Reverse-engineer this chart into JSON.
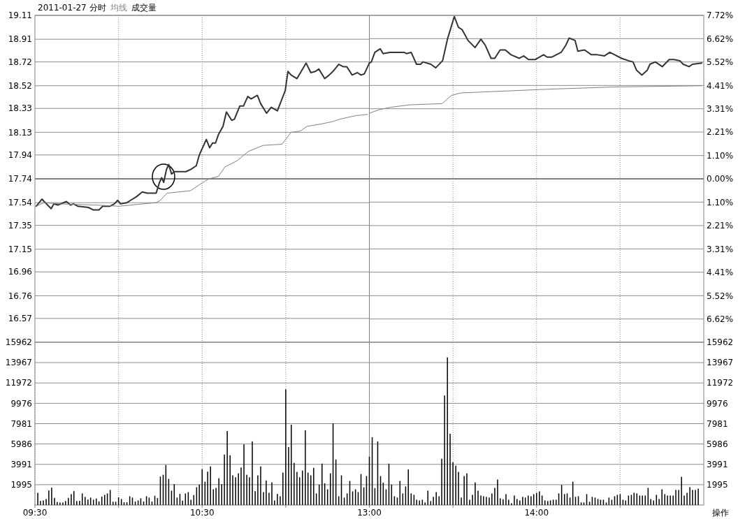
{
  "chart_data": [
    {
      "type": "line",
      "title": "2011-01-27 分时",
      "legend": "top left",
      "grid": true,
      "tick_labels": "y",
      "xlim": [
        9.5,
        11.5
      ],
      "xticks": [
        {
          "value": 10,
          "label": null
        },
        {
          "value": 10.5,
          "label": null
        },
        {
          "value": 11,
          "label": null
        }
      ],
      "ylim": [
        16.37,
        19.11
      ],
      "yticks": [
        16.57,
        16.76,
        16.96,
        17.15,
        17.35,
        17.54,
        17.74,
        17.94,
        18.13,
        18.33,
        18.52,
        18.72,
        18.91,
        19.11
      ],
      "ref_lines": [
        {
          "axis": "y",
          "value": 17.74,
          "color": "#808080"
        }
      ],
      "series": [
        {
          "color": "#333333",
          "x": [
            9.507,
            9.542,
            9.555,
            9.597,
            9.613,
            9.637,
            9.688,
            9.713,
            9.73,
            9.758,
            9.82,
            9.848,
            9.883,
            9.905,
            9.947,
            9.975,
            9.995,
            10.012,
            10.05,
            10.072,
            10.107,
            10.142,
            10.17,
            10.225,
            10.245,
            10.258,
            10.27,
            10.287,
            10.3,
            10.317,
            10.333,
            10.403,
            10.433,
            10.465,
            10.483,
            10.525,
            10.545,
            10.562,
            10.58,
            10.597,
            10.625,
            10.645,
            10.677,
            10.693,
            10.725,
            10.747,
            10.773,
            10.793,
            10.83,
            10.85,
            10.885,
            10.913,
            10.95,
            10.997,
            11.013,
            11.032,
            11.067,
            11.122,
            11.15,
            11.177,
            11.198,
            11.233,
            11.26,
            11.282,
            11.317,
            11.343,
            11.365,
            11.397,
            11.428,
            11.45,
            11.47,
            11.5
          ],
          "values": [
            17.51,
            17.57,
            17.55,
            17.49,
            17.53,
            17.52,
            17.55,
            17.52,
            17.53,
            17.51,
            17.5,
            17.48,
            17.48,
            17.51,
            17.51,
            17.53,
            17.56,
            17.53,
            17.54,
            17.56,
            17.59,
            17.63,
            17.62,
            17.62,
            17.71,
            17.75,
            17.71,
            17.82,
            17.86,
            17.78,
            17.8,
            17.8,
            17.82,
            17.85,
            17.94,
            18.07,
            18,
            18.04,
            18.04,
            18.11,
            18.18,
            18.3,
            18.23,
            18.24,
            18.35,
            18.35,
            18.43,
            18.41,
            18.44,
            18.37,
            18.29,
            18.34,
            18.31,
            18.48,
            18.64,
            18.61,
            18.58,
            18.71,
            18.63,
            18.64,
            18.66,
            18.58,
            18.61,
            18.64,
            18.7,
            18.68,
            18.68,
            18.61,
            18.63,
            18.61,
            18.62,
            18.71
          ]
        },
        {
          "name": "均线",
          "color": "#808080",
          "x": [
            9.507,
            9.555,
            9.653,
            9.863,
            10.003,
            10.072,
            10.225,
            10.25,
            10.29,
            10.36,
            10.43,
            10.483,
            10.54,
            10.597,
            10.637,
            10.707,
            10.777,
            10.865,
            10.977,
            11.032,
            11.087,
            11.128,
            11.212,
            11.282,
            11.323,
            11.42,
            11.49
          ],
          "values": [
            17.51,
            17.54,
            17.53,
            17.52,
            17.51,
            17.52,
            17.54,
            17.56,
            17.62,
            17.63,
            17.64,
            17.69,
            17.74,
            17.76,
            17.84,
            17.89,
            17.97,
            18.02,
            18.03,
            18.13,
            18.14,
            18.18,
            18.2,
            18.22,
            18.24,
            18.27,
            18.28
          ]
        }
      ]
    },
    {
      "type": "line",
      "grid": true,
      "tick_labels": "y",
      "xlim": [
        13,
        15
      ],
      "xticks": [
        {
          "value": 13.5,
          "label": null
        },
        {
          "value": 14,
          "label": null
        },
        {
          "value": 14.5,
          "label": null
        }
      ],
      "ylim": [
        16.37,
        19.11
      ],
      "y2lim": [
        -7.72,
        7.72
      ],
      "y2ticks": [
        {
          "value": -6.62,
          "label": "6.62%"
        },
        {
          "value": -5.52,
          "label": "5.52%"
        },
        {
          "value": -4.41,
          "label": "4.41%"
        },
        {
          "value": -3.31,
          "label": "3.31%"
        },
        {
          "value": -2.21,
          "label": "2.21%"
        },
        {
          "value": -1.1,
          "label": "1.10%"
        },
        {
          "value": 0,
          "label": "0.00%"
        },
        {
          "value": 1.1,
          "label": "1.10%"
        },
        {
          "value": 2.21,
          "label": "2.21%"
        },
        {
          "value": 3.31,
          "label": "3.31%"
        },
        {
          "value": 4.41,
          "label": "4.41%"
        },
        {
          "value": 5.52,
          "label": "5.52%"
        },
        {
          "value": 6.62,
          "label": "6.62%"
        },
        {
          "value": 7.72,
          "label": "7.72%"
        }
      ],
      "ref_lines": [
        {
          "axis": "y",
          "value": 17.74,
          "color": "#808080"
        }
      ],
      "series": [
        {
          "color": "#333333",
          "x": [
            13,
            13.012,
            13.033,
            13.065,
            13.082,
            13.123,
            13.207,
            13.222,
            13.25,
            13.282,
            13.307,
            13.32,
            13.368,
            13.397,
            13.438,
            13.467,
            13.508,
            13.533,
            13.555,
            13.59,
            13.632,
            13.667,
            13.693,
            13.728,
            13.75,
            13.782,
            13.813,
            13.847,
            13.897,
            13.923,
            13.952,
            13.993,
            14.042,
            14.063,
            14.09,
            14.147,
            14.175,
            14.195,
            14.23,
            14.247,
            14.287,
            14.328,
            14.363,
            14.405,
            14.438,
            14.467,
            14.508,
            14.55,
            14.577,
            14.598,
            14.63,
            14.662,
            14.678,
            14.71,
            14.752,
            14.793,
            14.822,
            14.857,
            14.877,
            14.912,
            14.933,
            14.988
          ],
          "values": [
            18.71,
            18.72,
            18.8,
            18.83,
            18.79,
            18.8,
            18.8,
            18.79,
            18.8,
            18.7,
            18.7,
            18.72,
            18.7,
            18.67,
            18.73,
            18.91,
            19.1,
            19.01,
            18.99,
            18.9,
            18.84,
            18.91,
            18.86,
            18.75,
            18.75,
            18.82,
            18.82,
            18.78,
            18.75,
            18.77,
            18.74,
            18.74,
            18.78,
            18.76,
            18.76,
            18.8,
            18.86,
            18.92,
            18.9,
            18.81,
            18.82,
            18.78,
            18.78,
            18.77,
            18.8,
            18.78,
            18.75,
            18.73,
            18.72,
            18.65,
            18.61,
            18.65,
            18.7,
            18.72,
            18.68,
            18.74,
            18.74,
            18.73,
            18.7,
            18.68,
            18.7,
            18.71
          ]
        },
        {
          "color": "#808080",
          "x": [
            13,
            13.06,
            13.128,
            13.24,
            13.435,
            13.492,
            13.548,
            13.715,
            14.048,
            14.467,
            14.988
          ],
          "values": [
            18.29,
            18.32,
            18.34,
            18.36,
            18.37,
            18.44,
            18.46,
            18.47,
            18.49,
            18.51,
            18.52
          ]
        }
      ]
    },
    {
      "type": "bar",
      "legend": "top left",
      "grid": true,
      "xlim": [
        9.5,
        11.5
      ],
      "xticks": [
        {
          "value": 9.5,
          "label": "09:30"
        },
        {
          "value": 10,
          "label": null
        },
        {
          "value": 10.5,
          "label": "10:30"
        },
        {
          "value": 11,
          "label": null
        }
      ],
      "ylim": [
        0,
        15962
      ],
      "yticks": [
        1995,
        3991,
        5986,
        7981,
        9976,
        11972,
        13967,
        15962
      ],
      "series": [
        {
          "name": "成交量",
          "color": "#000000",
          "x": [
            9.517,
            9.533,
            9.55,
            9.567,
            9.583,
            9.6,
            9.617,
            9.633,
            9.65,
            9.667,
            9.683,
            9.7,
            9.717,
            9.733,
            9.75,
            9.767,
            9.783,
            9.8,
            9.817,
            9.833,
            9.85,
            9.867,
            9.883,
            9.9,
            9.917,
            9.933,
            9.95,
            9.967,
            9.983,
            10,
            10.017,
            10.033,
            10.05,
            10.067,
            10.083,
            10.1,
            10.117,
            10.133,
            10.15,
            10.167,
            10.183,
            10.2,
            10.217,
            10.233,
            10.25,
            10.267,
            10.283,
            10.3,
            10.317,
            10.333,
            10.35,
            10.367,
            10.383,
            10.4,
            10.417,
            10.433,
            10.45,
            10.467,
            10.483,
            10.5,
            10.517,
            10.533,
            10.55,
            10.567,
            10.583,
            10.6,
            10.617,
            10.633,
            10.65,
            10.667,
            10.683,
            10.7,
            10.717,
            10.733,
            10.75,
            10.767,
            10.783,
            10.8,
            10.817,
            10.833,
            10.85,
            10.867,
            10.883,
            10.9,
            10.917,
            10.933,
            10.95,
            10.967,
            10.983,
            11,
            11.017,
            11.033,
            11.05,
            11.067,
            11.083,
            11.1,
            11.117,
            11.133,
            11.15,
            11.167,
            11.183,
            11.2,
            11.217,
            11.233,
            11.25,
            11.267,
            11.283,
            11.3,
            11.317,
            11.333,
            11.35,
            11.367,
            11.383,
            11.4,
            11.417,
            11.433,
            11.45,
            11.467,
            11.483,
            11.5
          ],
          "values": [
            1200,
            400,
            450,
            590,
            1430,
            1700,
            700,
            300,
            250,
            250,
            390,
            700,
            1070,
            1360,
            390,
            410,
            1140,
            800,
            540,
            730,
            520,
            640,
            360,
            820,
            1000,
            1140,
            1480,
            320,
            320,
            750,
            590,
            270,
            270,
            860,
            730,
            340,
            450,
            660,
            340,
            860,
            730,
            340,
            910,
            680,
            2790,
            2970,
            3930,
            2570,
            1410,
            2040,
            730,
            1090,
            430,
            1140,
            1270,
            520,
            980,
            1750,
            2000,
            3520,
            2290,
            3270,
            3790,
            1540,
            1680,
            2630,
            2040,
            4950,
            7260,
            4880,
            2910,
            2720,
            3110,
            3680,
            5950,
            2970,
            2720,
            6240,
            1360,
            2910,
            3790,
            1270,
            2410,
            1200,
            2220,
            450,
            1090,
            860,
            3180,
            11350,
            5680,
            7880,
            4130,
            3250,
            2720,
            3380,
            7330,
            3180,
            2910,
            3650,
            1140,
            2000,
            4060,
            2130,
            1540,
            3110,
            8010,
            4470,
            860,
            2910,
            730,
            1140,
            2360,
            1340,
            1540,
            1270,
            3040,
            1730,
            2840,
            4740
          ]
        }
      ]
    },
    {
      "type": "bar",
      "grid": true,
      "annotations": [
        "操作"
      ],
      "xlim": [
        13,
        15
      ],
      "xticks": [
        {
          "value": 13,
          "label": "13:00"
        },
        {
          "value": 13.5,
          "label": null
        },
        {
          "value": 14,
          "label": "14:00"
        },
        {
          "value": 14.5,
          "label": null
        }
      ],
      "ylim": [
        0,
        15962
      ],
      "yticks": [
        1995,
        3991,
        5986,
        7981,
        9976,
        11972,
        13967,
        15962
      ],
      "series": [
        {
          "color": "#000000",
          "x": [
            13.017,
            13.033,
            13.05,
            13.067,
            13.083,
            13.1,
            13.117,
            13.133,
            13.15,
            13.167,
            13.183,
            13.2,
            13.217,
            13.233,
            13.25,
            13.267,
            13.283,
            13.3,
            13.317,
            13.333,
            13.35,
            13.367,
            13.383,
            13.4,
            13.417,
            13.433,
            13.45,
            13.467,
            13.483,
            13.5,
            13.517,
            13.533,
            13.55,
            13.567,
            13.583,
            13.6,
            13.617,
            13.633,
            13.65,
            13.667,
            13.683,
            13.7,
            13.717,
            13.733,
            13.75,
            13.767,
            13.783,
            13.8,
            13.817,
            13.833,
            13.85,
            13.867,
            13.883,
            13.9,
            13.917,
            13.933,
            13.95,
            13.967,
            13.983,
            14,
            14.017,
            14.033,
            14.05,
            14.067,
            14.083,
            14.1,
            14.117,
            14.133,
            14.15,
            14.167,
            14.183,
            14.2,
            14.217,
            14.233,
            14.25,
            14.267,
            14.283,
            14.3,
            14.317,
            14.333,
            14.35,
            14.367,
            14.383,
            14.4,
            14.417,
            14.433,
            14.45,
            14.467,
            14.483,
            14.5,
            14.517,
            14.533,
            14.55,
            14.567,
            14.583,
            14.6,
            14.617,
            14.633,
            14.65,
            14.667,
            14.683,
            14.7,
            14.717,
            14.733,
            14.75,
            14.767,
            14.783,
            14.8,
            14.817,
            14.833,
            14.85,
            14.867,
            14.883,
            14.9,
            14.917,
            14.933,
            14.95,
            14.967
          ],
          "values": [
            6650,
            1660,
            6240,
            2840,
            2200,
            1540,
            4060,
            2000,
            860,
            730,
            2360,
            1140,
            1820,
            3500,
            1140,
            1000,
            520,
            450,
            520,
            250,
            1410,
            390,
            800,
            1270,
            860,
            4540,
            10740,
            14480,
            6990,
            4200,
            3860,
            3250,
            730,
            2840,
            3110,
            520,
            1000,
            2220,
            1410,
            930,
            860,
            800,
            730,
            1140,
            1680,
            2500,
            660,
            570,
            1070,
            520,
            180,
            930,
            590,
            450,
            800,
            730,
            930,
            860,
            1070,
            1200,
            1340,
            930,
            450,
            390,
            450,
            520,
            520,
            1140,
            1970,
            1070,
            1140,
            730,
            2290,
            800,
            860,
            250,
            250,
            1070,
            320,
            800,
            730,
            590,
            520,
            520,
            250,
            730,
            520,
            860,
            1000,
            1070,
            520,
            450,
            930,
            1000,
            1200,
            1140,
            930,
            930,
            930,
            1680,
            590,
            450,
            1000,
            590,
            1540,
            1070,
            930,
            930,
            930,
            1480,
            1480,
            2770,
            930,
            1200,
            1750,
            1480,
            1480,
            1610
          ]
        }
      ]
    }
  ]
}
